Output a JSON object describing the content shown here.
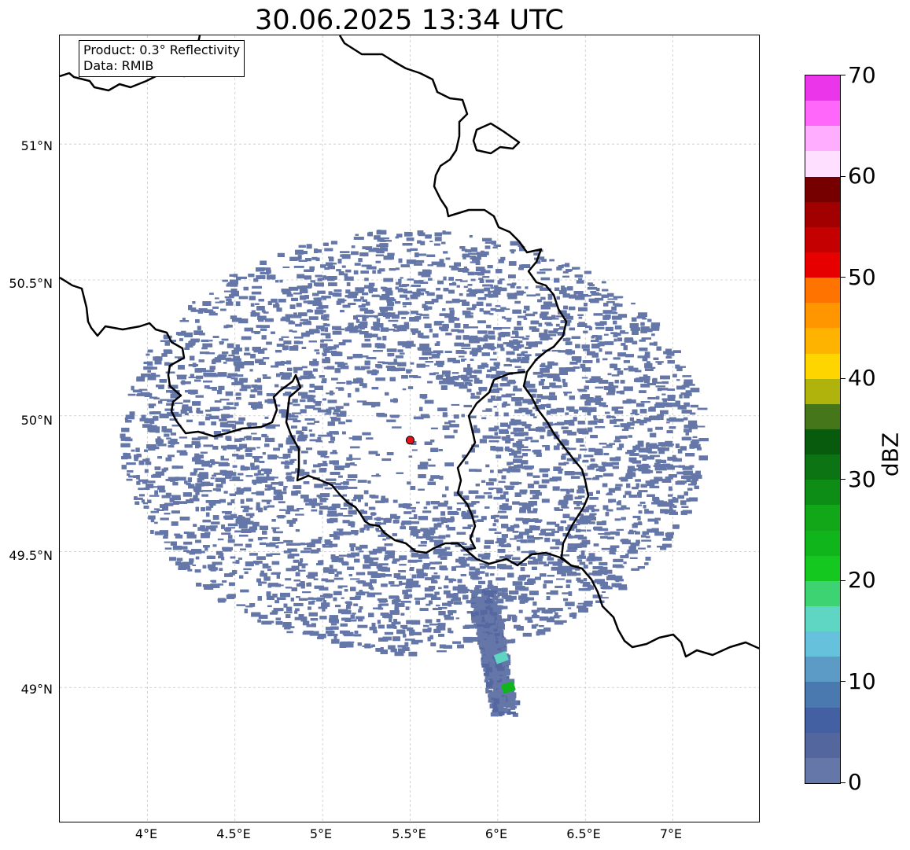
{
  "title": "30.06.2025 13:34 UTC",
  "info_box": {
    "product": "Product: 0.3° Reflectivity",
    "source": "Data: RMIB"
  },
  "map": {
    "extent": {
      "lon": [
        3.5,
        7.5
      ],
      "lat": [
        48.5,
        51.4
      ]
    },
    "radar_site": {
      "lon": 5.5,
      "lat": 49.91,
      "color": "#e8101a"
    },
    "latitude_labels": [
      {
        "value": 51.0,
        "label": "51°N"
      },
      {
        "value": 50.5,
        "label": "50.5°N"
      },
      {
        "value": 50.0,
        "label": "50°N"
      },
      {
        "value": 49.5,
        "label": "49.5°N"
      },
      {
        "value": 49.0,
        "label": "49°N"
      }
    ],
    "longitude_labels": [
      {
        "value": 4.0,
        "label": "4°E"
      },
      {
        "value": 4.5,
        "label": "4.5°E"
      },
      {
        "value": 5.0,
        "label": "5°E"
      },
      {
        "value": 5.5,
        "label": "5.5°E"
      },
      {
        "value": 6.0,
        "label": "6°E"
      },
      {
        "value": 6.5,
        "label": "6.5°E"
      },
      {
        "value": 7.0,
        "label": "7°E"
      }
    ],
    "echo_extent": {
      "center_lon": 5.5,
      "center_lat": 49.91,
      "radius_lon": 1.66,
      "radius_lat": 0.78
    },
    "echo_color": "#6577a8",
    "strong_echo_cells": [
      {
        "lon": 6.02,
        "lat": 49.11,
        "dbz": 17
      },
      {
        "lon": 6.06,
        "lat": 49.0,
        "dbz": 24
      }
    ],
    "border_color": "#000000"
  },
  "colorbar": {
    "label": "dBZ",
    "min": 0,
    "max": 70,
    "step": 2.5,
    "colors": [
      "#6577a8",
      "#53669e",
      "#4360a2",
      "#4a79b0",
      "#5b9bc6",
      "#65c1dc",
      "#5fd6c4",
      "#3dd272",
      "#15c81f",
      "#10b51c",
      "#12a619",
      "#0e8d16",
      "#0c7412",
      "#085a0d",
      "#45761a",
      "#b0b30b",
      "#ffd500",
      "#fdb300",
      "#ff9600",
      "#ff7400",
      "#e60000",
      "#c40000",
      "#a20000",
      "#760000",
      "#ffdfff",
      "#ffadff",
      "#ff67fa",
      "#ea35ea"
    ],
    "ticks": [
      0,
      10,
      20,
      30,
      40,
      50,
      60,
      70
    ]
  }
}
